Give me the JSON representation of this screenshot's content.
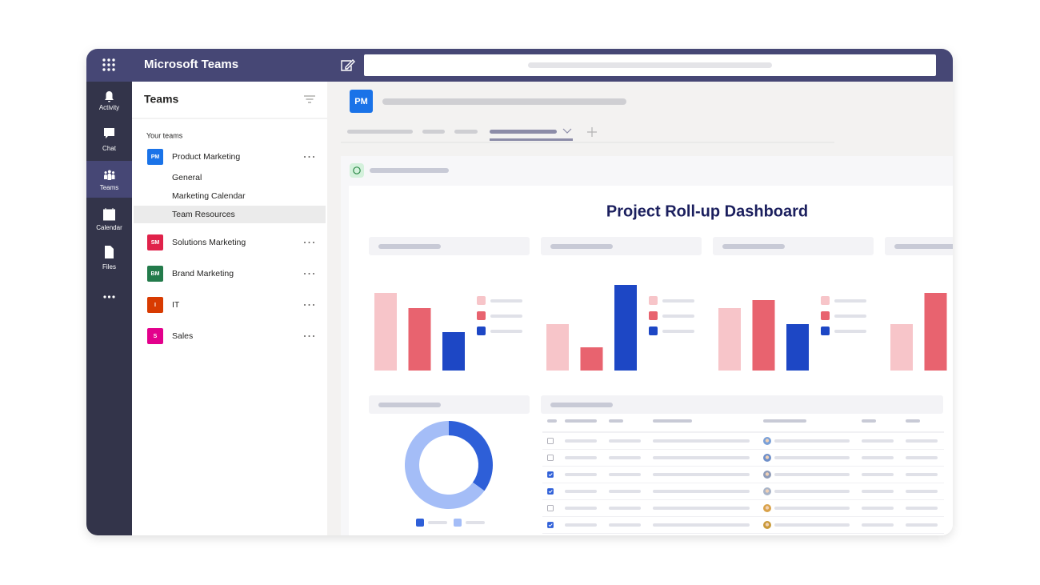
{
  "app": {
    "title": "Microsoft Teams"
  },
  "rail": [
    {
      "label": "Activity"
    },
    {
      "label": "Chat"
    },
    {
      "label": "Teams"
    },
    {
      "label": "Calendar"
    },
    {
      "label": "Files"
    }
  ],
  "teams_panel": {
    "title": "Teams",
    "section": "Your teams",
    "teams": [
      {
        "initials": "PM",
        "name": "Product Marketing",
        "color": "#1a73e8",
        "channels": [
          "General",
          "Marketing Calendar",
          "Team Resources"
        ],
        "selected_channel": 2
      },
      {
        "initials": "SM",
        "name": "Solutions Marketing",
        "color": "#e0224a"
      },
      {
        "initials": "BM",
        "name": "Brand Marketing",
        "color": "#237b4b"
      },
      {
        "initials": "I",
        "name": "IT",
        "color": "#d83b01"
      },
      {
        "initials": "S",
        "name": "Sales",
        "color": "#e3008c"
      }
    ]
  },
  "channel_header": {
    "initials": "PM",
    "color": "#1a73e8"
  },
  "dashboard": {
    "title": "Project Roll-up Dashboard",
    "series_colors": [
      "#f7c5c9",
      "#e8636f",
      "#1d47c5"
    ],
    "bar_charts": [
      {
        "values": [
          97,
          78,
          48
        ]
      },
      {
        "values": [
          58,
          29,
          107
        ]
      },
      {
        "values": [
          78,
          88,
          58
        ]
      },
      {
        "values": [
          58,
          97
        ]
      }
    ],
    "donut": {
      "values": [
        35,
        65
      ],
      "colors": [
        "#2e5fd8",
        "#a4bdf7"
      ]
    },
    "table": {
      "checked": [
        false,
        false,
        true,
        true,
        false,
        true
      ]
    }
  }
}
